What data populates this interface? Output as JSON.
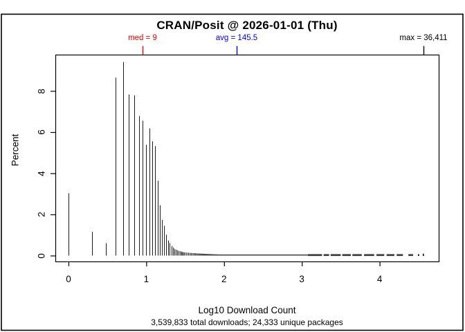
{
  "header": {
    "title": "CRAN/Posit @ 2026-01-01 (Thu)"
  },
  "annotations": {
    "med": {
      "label": "med = 9",
      "value": 9,
      "color": "#ff0000"
    },
    "avg": {
      "label": "avg = 145.5",
      "value": 145.5,
      "color": "#0000ff"
    },
    "max": {
      "label": "max = 36,411",
      "value": 36411,
      "color": "#000000"
    }
  },
  "axes": {
    "x": {
      "label": "Log10 Download Count",
      "ticks": [
        0,
        1,
        2,
        3,
        4
      ]
    },
    "y": {
      "label": "Percent",
      "ticks": [
        0,
        2,
        4,
        6,
        8
      ]
    }
  },
  "footer": {
    "summary": "3,539,833 total downloads; 24,333 unique packages"
  },
  "chart_data": {
    "type": "bar",
    "subtype": "log10-spike-histogram",
    "title": "CRAN/Posit @ 2026-01-01 (Thu)",
    "xlabel": "Log10 Download Count",
    "ylabel": "Percent",
    "xlim": [
      -0.17,
      4.69
    ],
    "ylim": [
      0,
      9.75
    ],
    "x_ticks": [
      0,
      1,
      2,
      3,
      4
    ],
    "y_ticks": [
      0,
      2,
      4,
      6,
      8
    ],
    "grid": false,
    "legend": "none",
    "spike_color": "#1a1a1a",
    "stats": {
      "median": 9,
      "mean": 145.5,
      "max": 36411,
      "total_downloads": "3,539,833",
      "unique_packages": "24,333"
    },
    "spikes": [
      {
        "n": 1,
        "pct": 3.03
      },
      {
        "n": 2,
        "pct": 1.15
      },
      {
        "n": 3,
        "pct": 0.6
      },
      {
        "n": 4,
        "pct": 8.65
      },
      {
        "n": 5,
        "pct": 9.4
      },
      {
        "n": 6,
        "pct": 7.83
      },
      {
        "n": 7,
        "pct": 7.79
      },
      {
        "n": 8,
        "pct": 6.78
      },
      {
        "n": 9,
        "pct": 6.55
      },
      {
        "n": 10,
        "pct": 5.38
      },
      {
        "n": 11,
        "pct": 6.18
      },
      {
        "n": 12,
        "pct": 5.55
      },
      {
        "n": 13,
        "pct": 5.32
      },
      {
        "n": 14,
        "pct": 3.64
      },
      {
        "n": 15,
        "pct": 2.45
      },
      {
        "n": 16,
        "pct": 1.74
      },
      {
        "n": 17,
        "pct": 1.45
      },
      {
        "n": 18,
        "pct": 1.02
      },
      {
        "n": 19,
        "pct": 0.73
      },
      {
        "n": 20,
        "pct": 0.61
      },
      {
        "n": 21,
        "pct": 0.47
      },
      {
        "n": 22,
        "pct": 0.39
      },
      {
        "n": 23,
        "pct": 0.33
      },
      {
        "n": 24,
        "pct": 0.29
      },
      {
        "n": 25,
        "pct": 0.26
      },
      {
        "n": 26,
        "pct": 0.23
      },
      {
        "n": 27,
        "pct": 0.21
      },
      {
        "n": 28,
        "pct": 0.19
      },
      {
        "n": 29,
        "pct": 0.17
      },
      {
        "n": 30,
        "pct": 0.16
      }
    ],
    "tail_decay": {
      "n_from": 31,
      "n_to": 1200,
      "coef": 4.8,
      "min_pct": 0.055
    },
    "tail_segments": [
      {
        "x1": 3.08,
        "x2": 3.26,
        "pct": 0.07
      },
      {
        "x1": 3.28,
        "x2": 3.35,
        "pct": 0.07
      },
      {
        "x1": 3.37,
        "x2": 3.5,
        "pct": 0.07
      },
      {
        "x1": 3.52,
        "x2": 3.63,
        "pct": 0.07
      },
      {
        "x1": 3.65,
        "x2": 3.77,
        "pct": 0.07
      },
      {
        "x1": 3.8,
        "x2": 3.93,
        "pct": 0.07
      },
      {
        "x1": 3.96,
        "x2": 4.06,
        "pct": 0.07
      },
      {
        "x1": 4.09,
        "x2": 4.19,
        "pct": 0.07
      },
      {
        "x1": 4.22,
        "x2": 4.3,
        "pct": 0.07
      },
      {
        "x1": 4.37,
        "x2": 4.43,
        "pct": 0.07
      }
    ],
    "tail_dots": [
      {
        "x": 4.5,
        "pct": 0.07
      },
      {
        "x": 4.561,
        "pct": 0.09
      }
    ]
  }
}
